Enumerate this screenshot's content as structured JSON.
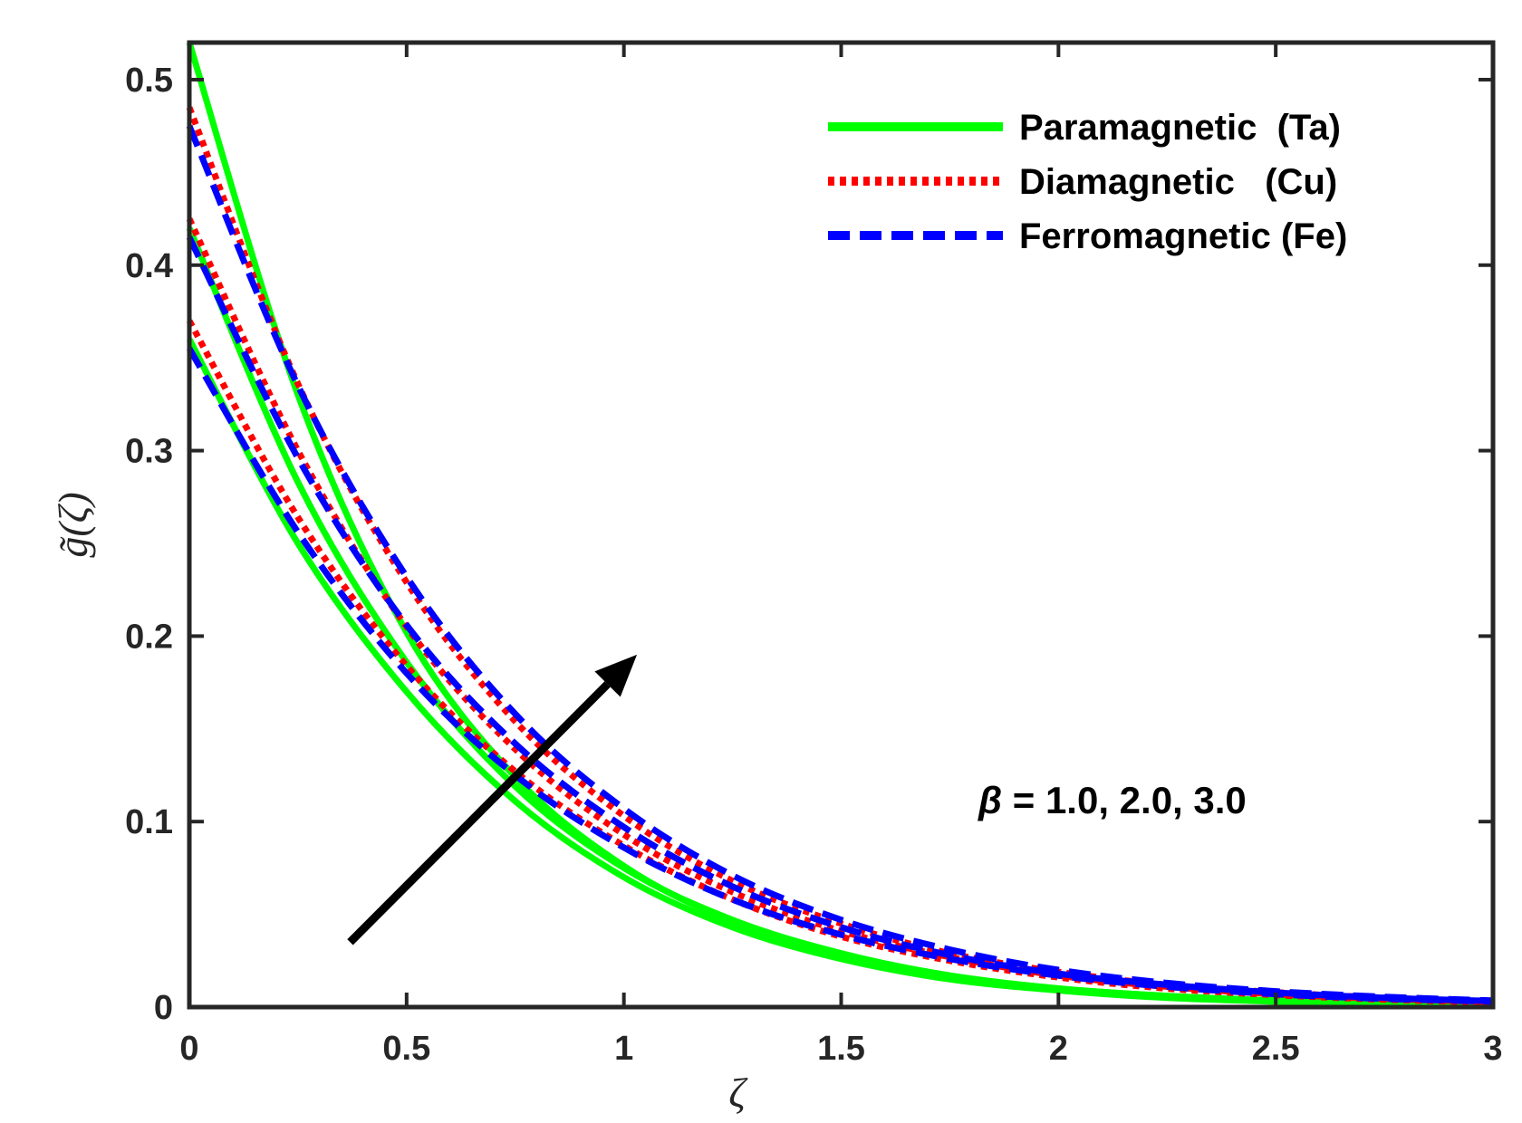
{
  "chart_data": {
    "type": "line",
    "title": "",
    "xlabel": "ζ",
    "ylabel": "g̃(ζ)",
    "xlim": [
      0,
      3
    ],
    "ylim": [
      0,
      0.52
    ],
    "xticks": [
      0,
      0.5,
      1,
      1.5,
      2,
      2.5,
      3
    ],
    "xtick_labels": [
      "0",
      "0.5",
      "1",
      "1.5",
      "2",
      "2.5",
      "3"
    ],
    "yticks": [
      0,
      0.1,
      0.2,
      0.3,
      0.4,
      0.5
    ],
    "ytick_labels": [
      "0",
      "0.1",
      "0.2",
      "0.3",
      "0.4",
      "0.5"
    ],
    "grid": false,
    "legend_position": "top-right",
    "legend": [
      {
        "label": "Paramagnetic  (Ta)",
        "color": "#00ff00",
        "style": "solid"
      },
      {
        "label": "Diamagnetic   (Cu)",
        "color": "#ff0000",
        "style": "dotted"
      },
      {
        "label": "Ferromagnetic (Fe)",
        "color": "#0000ff",
        "style": "dashed"
      }
    ],
    "annotation": {
      "symbol": "β",
      "text": " = 1.0, 2.0, 3.0"
    },
    "series": [
      {
        "legend_index": 0,
        "color": "#00ff00",
        "style": "solid",
        "x": [
          0,
          0.25,
          0.5,
          0.75,
          1.0,
          1.25,
          1.5,
          1.75,
          2.0,
          2.25,
          2.5,
          2.75,
          3.0
        ],
        "values": [
          0.36,
          0.25,
          0.17,
          0.111,
          0.07,
          0.043,
          0.026,
          0.015,
          0.009,
          0.005,
          0.003,
          0.0015,
          0.0008
        ]
      },
      {
        "legend_index": 0,
        "color": "#00ff00",
        "style": "solid",
        "x": [
          0,
          0.25,
          0.5,
          0.75,
          1.0,
          1.25,
          1.5,
          1.75,
          2.0,
          2.25,
          2.5,
          2.75,
          3.0
        ],
        "values": [
          0.42,
          0.283,
          0.186,
          0.119,
          0.075,
          0.047,
          0.029,
          0.017,
          0.01,
          0.006,
          0.0035,
          0.002,
          0.001
        ]
      },
      {
        "legend_index": 0,
        "color": "#00ff00",
        "style": "solid",
        "x": [
          0,
          0.25,
          0.5,
          0.75,
          1.0,
          1.25,
          1.5,
          1.75,
          2.0,
          2.25,
          2.5,
          2.75,
          3.0
        ],
        "values": [
          0.52,
          0.33,
          0.202,
          0.124,
          0.076,
          0.046,
          0.028,
          0.017,
          0.01,
          0.006,
          0.0035,
          0.002,
          0.001
        ]
      },
      {
        "legend_index": 1,
        "color": "#ff0000",
        "style": "dotted",
        "x": [
          0,
          0.25,
          0.5,
          0.75,
          1.0,
          1.25,
          1.5,
          1.75,
          2.0,
          2.25,
          2.5,
          2.75,
          3.0
        ],
        "values": [
          0.37,
          0.264,
          0.184,
          0.127,
          0.087,
          0.058,
          0.038,
          0.025,
          0.016,
          0.01,
          0.0065,
          0.004,
          0.0025
        ]
      },
      {
        "legend_index": 1,
        "color": "#ff0000",
        "style": "dotted",
        "x": [
          0,
          0.25,
          0.5,
          0.75,
          1.0,
          1.25,
          1.5,
          1.75,
          2.0,
          2.25,
          2.5,
          2.75,
          3.0
        ],
        "values": [
          0.425,
          0.3,
          0.205,
          0.139,
          0.093,
          0.062,
          0.041,
          0.027,
          0.017,
          0.011,
          0.007,
          0.0045,
          0.0028
        ]
      },
      {
        "legend_index": 1,
        "color": "#ff0000",
        "style": "dotted",
        "x": [
          0,
          0.25,
          0.5,
          0.75,
          1.0,
          1.25,
          1.5,
          1.75,
          2.0,
          2.25,
          2.5,
          2.75,
          3.0
        ],
        "values": [
          0.485,
          0.336,
          0.229,
          0.154,
          0.103,
          0.068,
          0.045,
          0.029,
          0.019,
          0.012,
          0.008,
          0.005,
          0.003
        ]
      },
      {
        "legend_index": 2,
        "color": "#0000ff",
        "style": "dashed",
        "x": [
          0,
          0.25,
          0.5,
          0.75,
          1.0,
          1.25,
          1.5,
          1.75,
          2.0,
          2.25,
          2.5,
          2.75,
          3.0
        ],
        "values": [
          0.355,
          0.256,
          0.18,
          0.125,
          0.086,
          0.058,
          0.039,
          0.026,
          0.017,
          0.011,
          0.007,
          0.0045,
          0.003
        ]
      },
      {
        "legend_index": 2,
        "color": "#0000ff",
        "style": "dashed",
        "x": [
          0,
          0.25,
          0.5,
          0.75,
          1.0,
          1.25,
          1.5,
          1.75,
          2.0,
          2.25,
          2.5,
          2.75,
          3.0
        ],
        "values": [
          0.415,
          0.296,
          0.206,
          0.142,
          0.097,
          0.065,
          0.043,
          0.028,
          0.018,
          0.012,
          0.0078,
          0.005,
          0.0032
        ]
      },
      {
        "legend_index": 2,
        "color": "#0000ff",
        "style": "dashed",
        "x": [
          0,
          0.25,
          0.5,
          0.75,
          1.0,
          1.25,
          1.5,
          1.75,
          2.0,
          2.25,
          2.5,
          2.75,
          3.0
        ],
        "values": [
          0.475,
          0.335,
          0.232,
          0.158,
          0.107,
          0.071,
          0.047,
          0.031,
          0.02,
          0.013,
          0.0085,
          0.0055,
          0.0035
        ]
      }
    ],
    "arrow": {
      "from": [
        0.37,
        0.035
      ],
      "to": [
        1.03,
        0.19
      ],
      "color": "#000000"
    }
  }
}
